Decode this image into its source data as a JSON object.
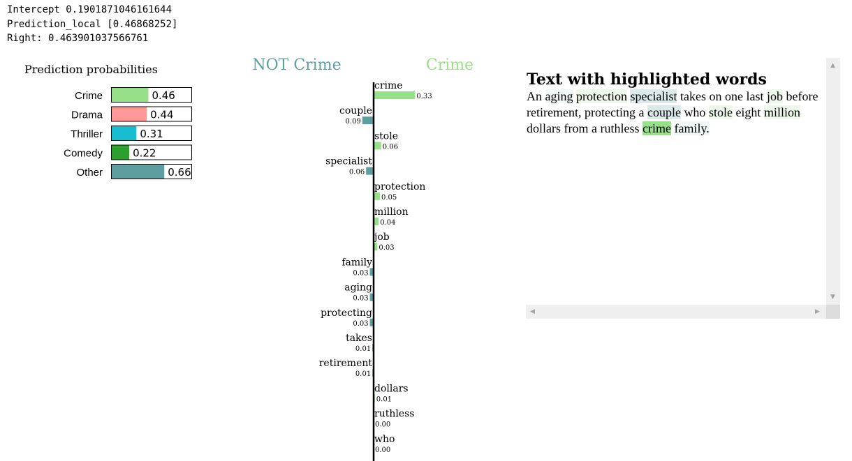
{
  "header": {
    "intercept": "Intercept 0.1901871046161644",
    "prediction_local": "Prediction_local [0.46868252]",
    "right": "Right: 0.463901037566761"
  },
  "chart_data": [
    {
      "type": "bar",
      "title": "Prediction probabilities",
      "categories": [
        "Crime",
        "Drama",
        "Thriller",
        "Comedy",
        "Other"
      ],
      "values": [
        0.46,
        0.44,
        0.31,
        0.22,
        0.66
      ],
      "value_labels": [
        "0.46",
        "0.44",
        "0.31",
        "0.22",
        "0.66"
      ],
      "colors": [
        "#98df8a",
        "#ff9896",
        "#17becf",
        "#2ca02c",
        "#5f9ea0"
      ],
      "xlim": [
        0,
        1
      ],
      "orientation": "horizontal"
    },
    {
      "type": "bar",
      "orientation": "horizontal",
      "class_labels": {
        "negative": "NOT Crime",
        "positive": "Crime"
      },
      "class_colors": {
        "negative": "#5f9ea0",
        "positive": "#98df8a"
      },
      "features": [
        {
          "name": "crime",
          "weight": 0.33,
          "label": "0.33"
        },
        {
          "name": "couple",
          "weight": -0.09,
          "label": "0.09"
        },
        {
          "name": "stole",
          "weight": 0.06,
          "label": "0.06"
        },
        {
          "name": "specialist",
          "weight": -0.06,
          "label": "0.06"
        },
        {
          "name": "protection",
          "weight": 0.05,
          "label": "0.05"
        },
        {
          "name": "million",
          "weight": 0.04,
          "label": "0.04"
        },
        {
          "name": "job",
          "weight": 0.03,
          "label": "0.03"
        },
        {
          "name": "family",
          "weight": -0.03,
          "label": "0.03"
        },
        {
          "name": "aging",
          "weight": -0.03,
          "label": "0.03"
        },
        {
          "name": "protecting",
          "weight": -0.03,
          "label": "0.03"
        },
        {
          "name": "takes",
          "weight": -0.01,
          "label": "0.01"
        },
        {
          "name": "retirement",
          "weight": -0.01,
          "label": "0.01"
        },
        {
          "name": "dollars",
          "weight": 0.01,
          "label": "0.01"
        },
        {
          "name": "ruthless",
          "weight": 0.0,
          "label": "0.00"
        },
        {
          "name": "who",
          "weight": 0.0,
          "label": "0.00"
        }
      ]
    }
  ],
  "text_panel": {
    "heading": "Text with highlighted words",
    "words": [
      {
        "text": "An",
        "hl": null
      },
      {
        "text": "aging",
        "hl": "neg-faint"
      },
      {
        "text": "protection",
        "hl": "pos-faint"
      },
      {
        "text": "specialist",
        "hl": "neg-light"
      },
      {
        "text": "takes",
        "hl": null
      },
      {
        "text": "on",
        "hl": null
      },
      {
        "text": "one",
        "hl": null
      },
      {
        "text": "last",
        "hl": null
      },
      {
        "text": "job",
        "hl": "pos-faint"
      },
      {
        "text": "before",
        "hl": null
      },
      {
        "text": "retirement,",
        "hl": null
      },
      {
        "text": "protecting",
        "hl": null
      },
      {
        "text": "a",
        "hl": null
      },
      {
        "text": "couple",
        "hl": "neg-light"
      },
      {
        "text": "who",
        "hl": null
      },
      {
        "text": "stole",
        "hl": "pos-faint"
      },
      {
        "text": "eight",
        "hl": null
      },
      {
        "text": "million",
        "hl": "pos-faint"
      },
      {
        "text": "dollars",
        "hl": null
      },
      {
        "text": "from",
        "hl": null
      },
      {
        "text": "a",
        "hl": null
      },
      {
        "text": "ruthless",
        "hl": null
      },
      {
        "text": "crime",
        "hl": "pos-strong"
      },
      {
        "text": "family.",
        "hl": "neg-faint"
      }
    ],
    "highlight_colors": {
      "pos-strong": "#98df8a",
      "pos-faint": "#eef8ea",
      "neg-light": "#dbe9ea",
      "neg-faint": "#f1f6f6"
    }
  }
}
